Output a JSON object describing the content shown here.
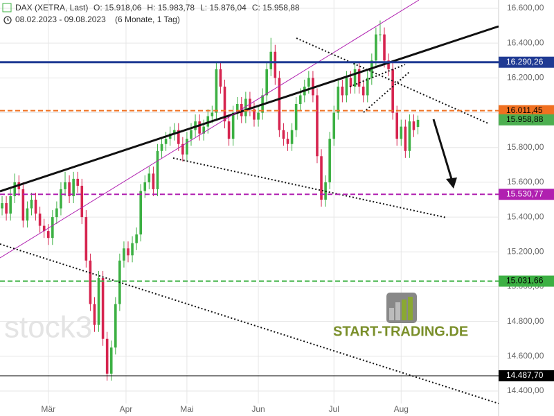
{
  "chart_data": {
    "type": "candlestick",
    "legend_text": "DAX (XETRA, Last)",
    "ohlc_labels": [
      "O: 15.918,06",
      "H: 15.983,78",
      "L: 15.876,04",
      "C: 15.958,88"
    ],
    "date_range": "08.02.2023 - 09.08.2023",
    "period": "(6 Monate, 1 Tag)",
    "watermark": "stock3",
    "brand": "START-TRADING.DE",
    "up_color": "#3cb043",
    "down_color": "#d6244f",
    "xlim": [
      -0.5,
      118.2
    ],
    "xticks": [
      {
        "value": 11,
        "label": "Mär"
      },
      {
        "value": 29.5,
        "label": "Apr"
      },
      {
        "value": 44,
        "label": "Mai"
      },
      {
        "value": 61,
        "label": "Jun"
      },
      {
        "value": 79,
        "label": "Jul"
      },
      {
        "value": 95,
        "label": "Aug"
      }
    ],
    "ylim": [
      14400,
      16600
    ],
    "yticks": [
      {
        "value": 14400,
        "label": "14.400,00"
      },
      {
        "value": 14600,
        "label": "14.600,00"
      },
      {
        "value": 14800,
        "label": "14.800,00"
      },
      {
        "value": 15000,
        "label": "15.000,00"
      },
      {
        "value": 15200,
        "label": "15.200,00"
      },
      {
        "value": 15400,
        "label": "15.400,00"
      },
      {
        "value": 15600,
        "label": "15.600,00"
      },
      {
        "value": 15800,
        "label": "15.800,00"
      },
      {
        "value": 16000,
        "label": "16.000,00"
      },
      {
        "value": 16200,
        "label": "16.200,00"
      },
      {
        "value": 16400,
        "label": "16.400,00"
      },
      {
        "value": 16600,
        "label": "16.600,00"
      }
    ],
    "grid": true,
    "open": [
      15450,
      15480,
      15420,
      15520,
      15600,
      15560,
      15380,
      15450,
      15500,
      15420,
      15350,
      15320,
      15280,
      15400,
      15450,
      15560,
      15600,
      15520,
      15620,
      15580,
      15400,
      15150,
      14900,
      14780,
      15050,
      14700,
      14500,
      14650,
      14900,
      15150,
      15220,
      15180,
      15250,
      15300,
      15550,
      15600,
      15650,
      15560,
      15780,
      15820,
      15850,
      15880,
      15900,
      15820,
      15760,
      15850,
      15900,
      15950,
      15880,
      15920,
      15980,
      16000,
      16250,
      16150,
      15950,
      15850,
      16000,
      16050,
      15980,
      16080,
      16020,
      15960,
      16000,
      16100,
      16250,
      16350,
      16200,
      15900,
      15850,
      15820,
      15900,
      16050,
      16100,
      16150,
      16200,
      16100,
      15750,
      15500,
      15600,
      15850,
      16000,
      16150,
      16100,
      16200,
      16150,
      16250,
      16150,
      16100,
      16200,
      16300,
      16450,
      16450,
      16300,
      16250,
      16000,
      15850,
      15920,
      15780,
      15950,
      15918.06
    ],
    "high": [
      15520,
      15520,
      15560,
      15650,
      15640,
      15600,
      15490,
      15540,
      15540,
      15460,
      15390,
      15360,
      15440,
      15490,
      15600,
      15660,
      15640,
      15660,
      15660,
      15620,
      15440,
      15190,
      14940,
      15090,
      15090,
      14740,
      14690,
      14940,
      15190,
      15260,
      15260,
      15290,
      15340,
      15590,
      15640,
      15690,
      15690,
      15820,
      15860,
      15890,
      15920,
      15940,
      15940,
      15860,
      15890,
      15940,
      15990,
      15990,
      15960,
      16020,
      16040,
      16290,
      16290,
      16190,
      15990,
      16040,
      16090,
      16090,
      16120,
      16120,
      16060,
      16040,
      16140,
      16290,
      16430,
      16390,
      16240,
      15940,
      15890,
      15940,
      16090,
      16140,
      16190,
      16240,
      16240,
      16140,
      15790,
      15640,
      15890,
      16040,
      16190,
      16190,
      16240,
      16240,
      16290,
      16290,
      16190,
      16240,
      16340,
      16490,
      16530,
      16490,
      16340,
      16290,
      16040,
      15960,
      15960,
      15990,
      15990,
      15983.78
    ],
    "low": [
      15410,
      15380,
      15380,
      15480,
      15520,
      15340,
      15340,
      15410,
      15380,
      15310,
      15280,
      15240,
      15240,
      15360,
      15410,
      15520,
      15480,
      15480,
      15540,
      15360,
      15110,
      14860,
      14740,
      14740,
      14660,
      14460,
      14460,
      14610,
      14860,
      15110,
      15140,
      15140,
      15210,
      15260,
      15510,
      15560,
      15520,
      15520,
      15740,
      15780,
      15810,
      15840,
      15780,
      15720,
      15720,
      15810,
      15860,
      15840,
      15840,
      15880,
      15940,
      15960,
      16110,
      15910,
      15810,
      15810,
      15960,
      15940,
      15940,
      15980,
      15920,
      15920,
      15960,
      16060,
      16210,
      16160,
      15860,
      15810,
      15780,
      15780,
      15860,
      16010,
      16060,
      16110,
      16060,
      15710,
      15460,
      15460,
      15560,
      15810,
      15960,
      16060,
      16060,
      16110,
      16110,
      16110,
      16060,
      16060,
      16160,
      16260,
      16410,
      16260,
      16210,
      15960,
      15810,
      15810,
      15740,
      15740,
      15860,
      15876.04
    ],
    "close": [
      15480,
      15420,
      15520,
      15600,
      15560,
      15380,
      15450,
      15500,
      15420,
      15350,
      15320,
      15280,
      15400,
      15450,
      15560,
      15600,
      15520,
      15620,
      15580,
      15400,
      15150,
      14900,
      14780,
      15050,
      14700,
      14500,
      14650,
      14900,
      15150,
      15220,
      15180,
      15250,
      15300,
      15550,
      15600,
      15650,
      15560,
      15780,
      15820,
      15850,
      15880,
      15900,
      15820,
      15760,
      15850,
      15900,
      15950,
      15880,
      15920,
      15980,
      16000,
      16250,
      16150,
      15950,
      15850,
      16000,
      16050,
      15980,
      16080,
      16020,
      15960,
      16000,
      16100,
      16250,
      16350,
      16200,
      15900,
      15850,
      15820,
      15900,
      16050,
      16100,
      16150,
      16200,
      16100,
      15750,
      15500,
      15600,
      15850,
      16000,
      16150,
      16100,
      16200,
      16150,
      16250,
      16150,
      16100,
      16200,
      16300,
      16450,
      16450,
      16300,
      16250,
      16000,
      15850,
      15920,
      15780,
      15950,
      15900,
      15958.88
    ],
    "levels": [
      {
        "value": 16290.26,
        "label": "16.290,26",
        "color": "#1f3a93",
        "text_color": "#ffffff",
        "style": "solid"
      },
      {
        "value": 16011.45,
        "label": "16.011,45",
        "color": "#f07020",
        "text_color": "#000000",
        "style": "dashed"
      },
      {
        "value": 15530.77,
        "label": "15.530,77",
        "color": "#b020b0",
        "text_color": "#ffffff",
        "style": "dashed"
      },
      {
        "value": 15031.66,
        "label": "15.031,66",
        "color": "#3cb043",
        "text_color": "#000000",
        "style": "dashed"
      },
      {
        "value": 14487.7,
        "label": "14.487,70",
        "color": "#000000",
        "text_color": "#ffffff",
        "style": "solid"
      }
    ],
    "last_price": {
      "value": 15958.88,
      "label": "15.958,88",
      "color": "#4caf50"
    }
  }
}
